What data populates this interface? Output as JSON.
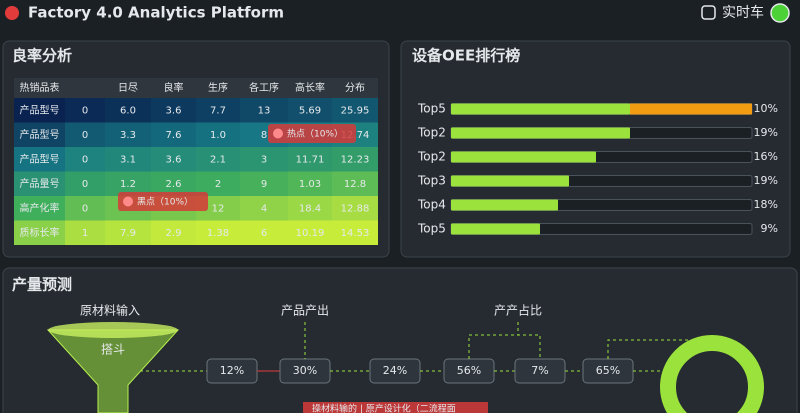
{
  "header": {
    "title": "Factory 4.0 Analytics Platform",
    "status": "实时车"
  },
  "yield_panel": {
    "title": "良率分析",
    "columns": [
      "热销品表",
      null,
      "日尽",
      "良率",
      "生序",
      "各工序",
      "高长率",
      "分布"
    ],
    "rows": [
      [
        "产品型号",
        "0",
        "6.0",
        "3.6",
        "7.7",
        "13",
        "5.69",
        "25.95"
      ],
      [
        "产品型号",
        "0",
        "3.3",
        "7.6",
        "1.0",
        "8",
        null,
        "12.74"
      ],
      [
        "产品型号",
        "0",
        "3.1",
        "3.6",
        "2.1",
        "3",
        "11.71",
        "12.23"
      ],
      [
        "产品量号",
        "0",
        "1.2",
        "2.6",
        "2",
        "9",
        "1.03",
        "12.8"
      ],
      [
        "高产化率",
        "0",
        null,
        null,
        "12",
        "4",
        "18.4",
        "12.88"
      ],
      [
        "质标长率",
        "1",
        "7.9",
        "2.9",
        "1.38",
        "6",
        "10.19",
        "14.53"
      ]
    ],
    "tags": [
      "热点（10%）",
      "黑点（10%）"
    ]
  },
  "oee_panel": {
    "title": "设备OEE排行榜",
    "items": [
      {
        "label": "Top5",
        "value": "10%"
      },
      {
        "label": "Top2",
        "value": "19%"
      },
      {
        "label": "Top2",
        "value": "16%"
      },
      {
        "label": "Top3",
        "value": "19%"
      },
      {
        "label": "Top4",
        "value": "18%"
      },
      {
        "label": "Top5",
        "value": "9%"
      }
    ]
  },
  "forecast_panel": {
    "title": "产量预测",
    "stages": [
      "原材料输入",
      "产品产出",
      "产产占比"
    ],
    "funnel": "搭斗",
    "steps": [
      "12%",
      "30%",
      "24%",
      "56%",
      "7%",
      "65%"
    ],
    "banner": "操材料输的 | 原产设计化（二流程面"
  }
}
